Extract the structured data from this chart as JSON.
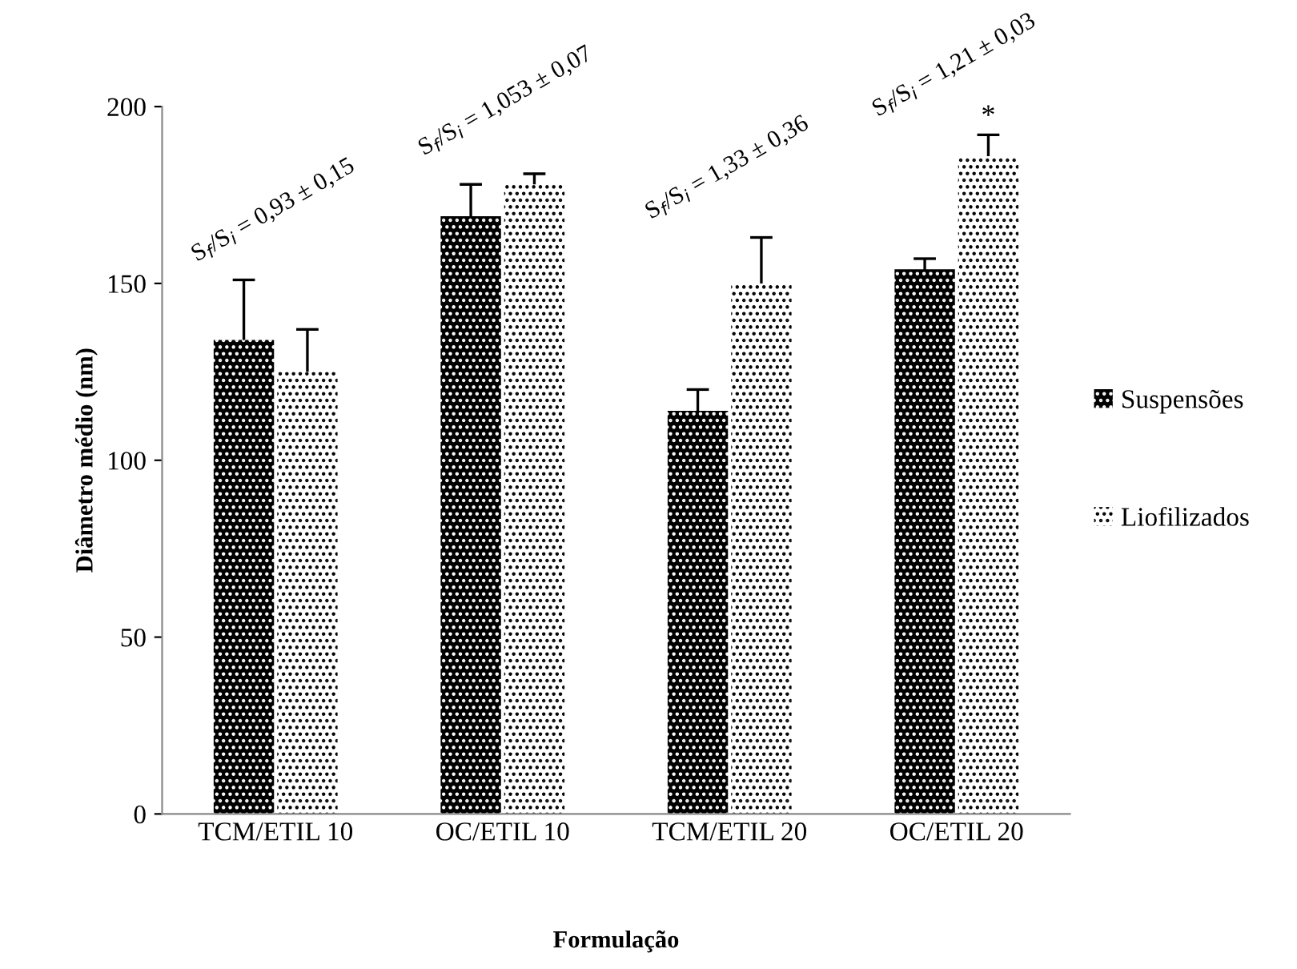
{
  "chart_data": {
    "type": "bar",
    "xlabel": "Formulação",
    "ylabel": "Diâmetro médio (nm)",
    "categories": [
      "TCM/ETIL 10",
      "OC/ETIL 10",
      "TCM/ETIL 20",
      "OC/ETIL 20"
    ],
    "series": [
      {
        "name": "Suspensões",
        "color": "#000000",
        "values": [
          134,
          169,
          114,
          154
        ],
        "errors": [
          17,
          9,
          6,
          3
        ]
      },
      {
        "name": "Liofilizados",
        "color": "#ffffff",
        "values": [
          125,
          178,
          150,
          186
        ],
        "errors": [
          12,
          3,
          13,
          6
        ]
      }
    ],
    "ylim": [
      0,
      200
    ],
    "yticks": [
      0,
      50,
      100,
      150,
      200
    ],
    "grid": false,
    "legend": "right",
    "annotations": [
      "S$_{f}$/S$_{i}$ = 0,93 ± 0,15",
      "S$_{f}$/S$_{i}$ = 1,053 ± 0,07",
      "S$_{f}$/S$_{i}$ = 1,33 ± 0,36",
      "S$_{f}$/S$_{i}$ = 1,21 ± 0,03",
      "*"
    ]
  }
}
